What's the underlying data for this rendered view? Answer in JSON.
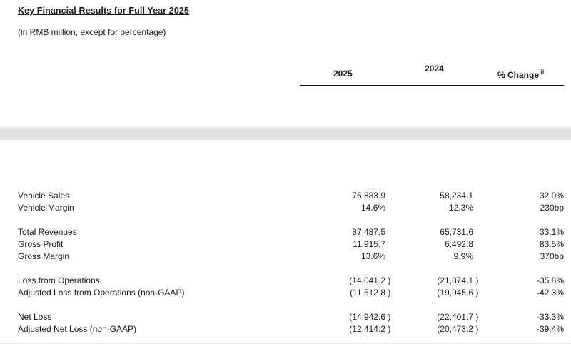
{
  "page": {
    "title": "Key Financial Results for Full Year 2025",
    "subtitle": "(in RMB million, except for percentage)"
  },
  "table": {
    "header": {
      "col_2025": "2025",
      "col_2024": "2024",
      "col_change": "% Change",
      "change_footnote": "iii"
    },
    "groups": [
      {
        "rows": [
          {
            "label": "Vehicle Sales",
            "v2025": "76,883.9",
            "v2024": "58,234.1",
            "change": "32.0%"
          },
          {
            "label": "Vehicle Margin",
            "v2025": "14.6%",
            "v2024": "12.3%",
            "change": "230bp"
          }
        ]
      },
      {
        "rows": [
          {
            "label": "Total Revenues",
            "v2025": "87,487.5",
            "v2024": "65,731.6",
            "change": "33.1%"
          },
          {
            "label": "Gross Profit",
            "v2025": "11,915.7",
            "v2024": "6,492.8",
            "change": "83.5%"
          },
          {
            "label": "Gross Margin",
            "v2025": "13.6%",
            "v2024": "9.9%",
            "change": "370bp"
          }
        ]
      },
      {
        "rows": [
          {
            "label": "Loss from Operations",
            "v2025": "(14,041.2 )",
            "v2024": "(21,874.1 )",
            "change": "-35.8%"
          },
          {
            "label": "Adjusted Loss from Operations (non-GAAP)",
            "v2025": "(11,512.8 )",
            "v2024": "(19,945.6 )",
            "change": "-42.3%"
          }
        ]
      },
      {
        "rows": [
          {
            "label": "Net Loss",
            "v2025": "(14,942.6 )",
            "v2024": "(22,401.7 )",
            "change": "-33.3%"
          },
          {
            "label": "Adjusted Net Loss (non-GAAP)",
            "v2025": "(12,414.2 )",
            "v2024": "(20,473.2 )",
            "change": "-39.4%"
          }
        ]
      }
    ]
  },
  "colors": {
    "text": "#1a1a1a",
    "rule": "#111111",
    "band": "#e2e2e2",
    "background": "#ffffff"
  }
}
